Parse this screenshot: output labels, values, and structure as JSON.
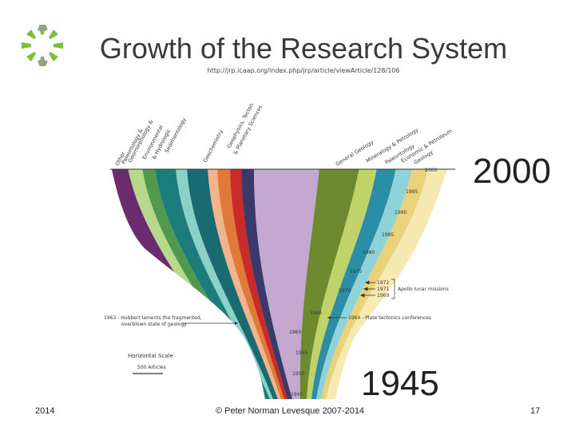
{
  "slide": {
    "title": "Growth of the Research System",
    "source_url": "http://jrp.icaap.org/index.php/jrp/article/viewArticle/128/106",
    "label_start_year": "1945",
    "label_end_year": "2000",
    "footer_year": "2014",
    "footer_copyright": "© Peter Norman Levesque 2007-2014",
    "page_number": "17"
  },
  "figure": {
    "discipline_labels": [
      "Other",
      "Paleontology &",
      "Geomorphology &",
      "Environmental",
      "Sedimentology",
      "& Hydrologic",
      "Geochemistry",
      "Geophysics, Tectonics,",
      "& Planetary Sciences",
      "General Geology",
      "Mineralogy & Petrology",
      "Paleontology",
      "Economic & Petroleum",
      "Geology"
    ],
    "year_ticks": [
      "2000",
      "1995",
      "1990",
      "1985",
      "1980",
      "1975",
      "1970",
      "1965",
      "1960",
      "1955",
      "1950",
      "1945"
    ],
    "apollo_years": [
      "1972",
      "1971",
      "1969"
    ],
    "apollo_label": "Apollo lunar missions",
    "annotation_plate": "1964 - Plate tectonics conferences",
    "annotation_hubbert_1": "1963 - Hubbert laments the fragmented,",
    "annotation_hubbert_2": "overblown state of geology",
    "scale_title": "Horizontal Scale",
    "scale_label": "500 Articles"
  }
}
